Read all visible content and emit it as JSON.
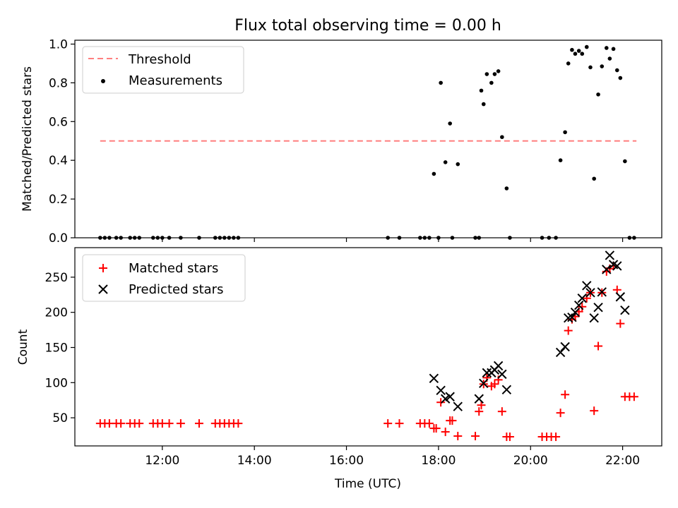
{
  "chart_data": [
    {
      "type": "scatter",
      "title": "Flux total observing time = 0.00 h",
      "ylabel": "Matched/Predicted stars",
      "xlabel": "",
      "ylim": [
        0.0,
        1.02
      ],
      "xlim": [
        10.1,
        22.85
      ],
      "yticks": [
        0.0,
        0.2,
        0.4,
        0.6,
        0.8,
        1.0
      ],
      "ytick_labels": [
        "0.0",
        "0.2",
        "0.4",
        "0.6",
        "0.8",
        "1.0"
      ],
      "legend_position": "top-left",
      "colors": {
        "threshold": "#ff7f7f",
        "measurements": "#000000"
      },
      "threshold": {
        "name": "Threshold",
        "y": 0.5,
        "x_range": [
          10.65,
          22.3
        ]
      },
      "series": [
        {
          "name": "Measurements",
          "marker": "dot",
          "x": [
            10.65,
            10.75,
            10.85,
            11.0,
            11.1,
            11.3,
            11.4,
            11.5,
            11.8,
            11.9,
            12.0,
            12.15,
            12.4,
            12.8,
            13.15,
            13.25,
            13.35,
            13.45,
            13.55,
            13.65,
            16.9,
            17.15,
            17.6,
            17.7,
            17.8,
            17.9,
            18.0,
            18.05,
            18.15,
            18.25,
            18.3,
            18.42,
            18.8,
            18.88,
            18.93,
            18.98,
            19.05,
            19.15,
            19.22,
            19.3,
            19.38,
            19.48,
            19.55,
            20.25,
            20.4,
            20.55,
            20.65,
            20.75,
            20.82,
            20.9,
            20.97,
            21.05,
            21.12,
            21.22,
            21.3,
            21.38,
            21.47,
            21.55,
            21.65,
            21.72,
            21.8,
            21.88,
            21.95,
            22.05,
            22.15,
            22.25
          ],
          "y": [
            0,
            0,
            0,
            0,
            0,
            0,
            0,
            0,
            0,
            0,
            0,
            0,
            0,
            0,
            0,
            0,
            0,
            0,
            0,
            0,
            0,
            0,
            0,
            0,
            0,
            0.33,
            0,
            0.8,
            0.39,
            0.59,
            0,
            0.38,
            0,
            0,
            0.76,
            0.69,
            0.845,
            0.8,
            0.845,
            0.86,
            0.52,
            0.255,
            0,
            0,
            0,
            0,
            0.4,
            0.545,
            0.9,
            0.97,
            0.95,
            0.965,
            0.95,
            0.985,
            0.88,
            0.305,
            0.74,
            0.885,
            0.98,
            0.925,
            0.975,
            0.865,
            0.825,
            0.395,
            0,
            0
          ]
        }
      ]
    },
    {
      "type": "scatter",
      "title": "",
      "ylabel": "Count",
      "xlabel": "Time (UTC)",
      "ylim": [
        10,
        292
      ],
      "xlim": [
        10.1,
        22.85
      ],
      "yticks": [
        50,
        100,
        150,
        200,
        250
      ],
      "ytick_labels": [
        "50",
        "100",
        "150",
        "200",
        "250"
      ],
      "xticks": [
        12,
        14,
        16,
        18,
        20,
        22
      ],
      "xtick_labels": [
        "12:00",
        "14:00",
        "16:00",
        "18:00",
        "20:00",
        "22:00"
      ],
      "legend_position": "top-left",
      "colors": {
        "matched": "#ff0000",
        "predicted": "#000000"
      },
      "series": [
        {
          "name": "Matched stars",
          "marker": "plus",
          "x": [
            10.65,
            10.75,
            10.85,
            11.0,
            11.1,
            11.3,
            11.4,
            11.5,
            11.8,
            11.9,
            12.0,
            12.15,
            12.4,
            12.8,
            13.15,
            13.25,
            13.35,
            13.45,
            13.55,
            13.65,
            16.9,
            17.15,
            17.6,
            17.7,
            17.8,
            17.9,
            17.95,
            18.05,
            18.15,
            18.25,
            18.3,
            18.42,
            18.8,
            18.88,
            18.93,
            18.98,
            19.05,
            19.15,
            19.22,
            19.3,
            19.38,
            19.48,
            19.55,
            20.25,
            20.35,
            20.45,
            20.55,
            20.65,
            20.75,
            20.82,
            20.9,
            20.97,
            21.05,
            21.12,
            21.22,
            21.3,
            21.38,
            21.47,
            21.55,
            21.65,
            21.72,
            21.8,
            21.88,
            21.95,
            22.05,
            22.15,
            22.25
          ],
          "y": [
            42,
            42,
            42,
            42,
            42,
            42,
            42,
            42,
            42,
            42,
            42,
            42,
            42,
            42,
            42,
            42,
            42,
            42,
            42,
            42,
            42,
            42,
            42,
            42,
            42,
            35,
            35,
            72,
            30,
            46,
            46,
            24,
            24,
            59,
            68,
            98,
            107,
            95,
            98,
            104,
            59,
            23,
            23,
            23,
            23,
            23,
            23,
            57,
            83,
            174,
            190,
            194,
            201,
            208,
            220,
            228,
            60,
            152,
            228,
            258,
            262,
            266,
            232,
            184,
            80,
            80,
            80
          ]
        },
        {
          "name": "Predicted stars",
          "marker": "x",
          "x": [
            17.9,
            18.05,
            18.15,
            18.25,
            18.42,
            18.88,
            18.98,
            19.05,
            19.15,
            19.22,
            19.3,
            19.38,
            19.48,
            20.65,
            20.75,
            20.82,
            20.9,
            20.97,
            21.05,
            21.12,
            21.22,
            21.3,
            21.38,
            21.47,
            21.55,
            21.65,
            21.72,
            21.8,
            21.88,
            21.95,
            22.05
          ],
          "y": [
            106,
            89,
            77,
            80,
            66,
            77,
            99,
            114,
            114,
            118,
            124,
            112,
            90,
            143,
            151,
            192,
            193,
            200,
            210,
            220,
            238,
            228,
            192,
            207,
            229,
            261,
            281,
            268,
            266,
            222,
            203
          ]
        }
      ]
    }
  ]
}
